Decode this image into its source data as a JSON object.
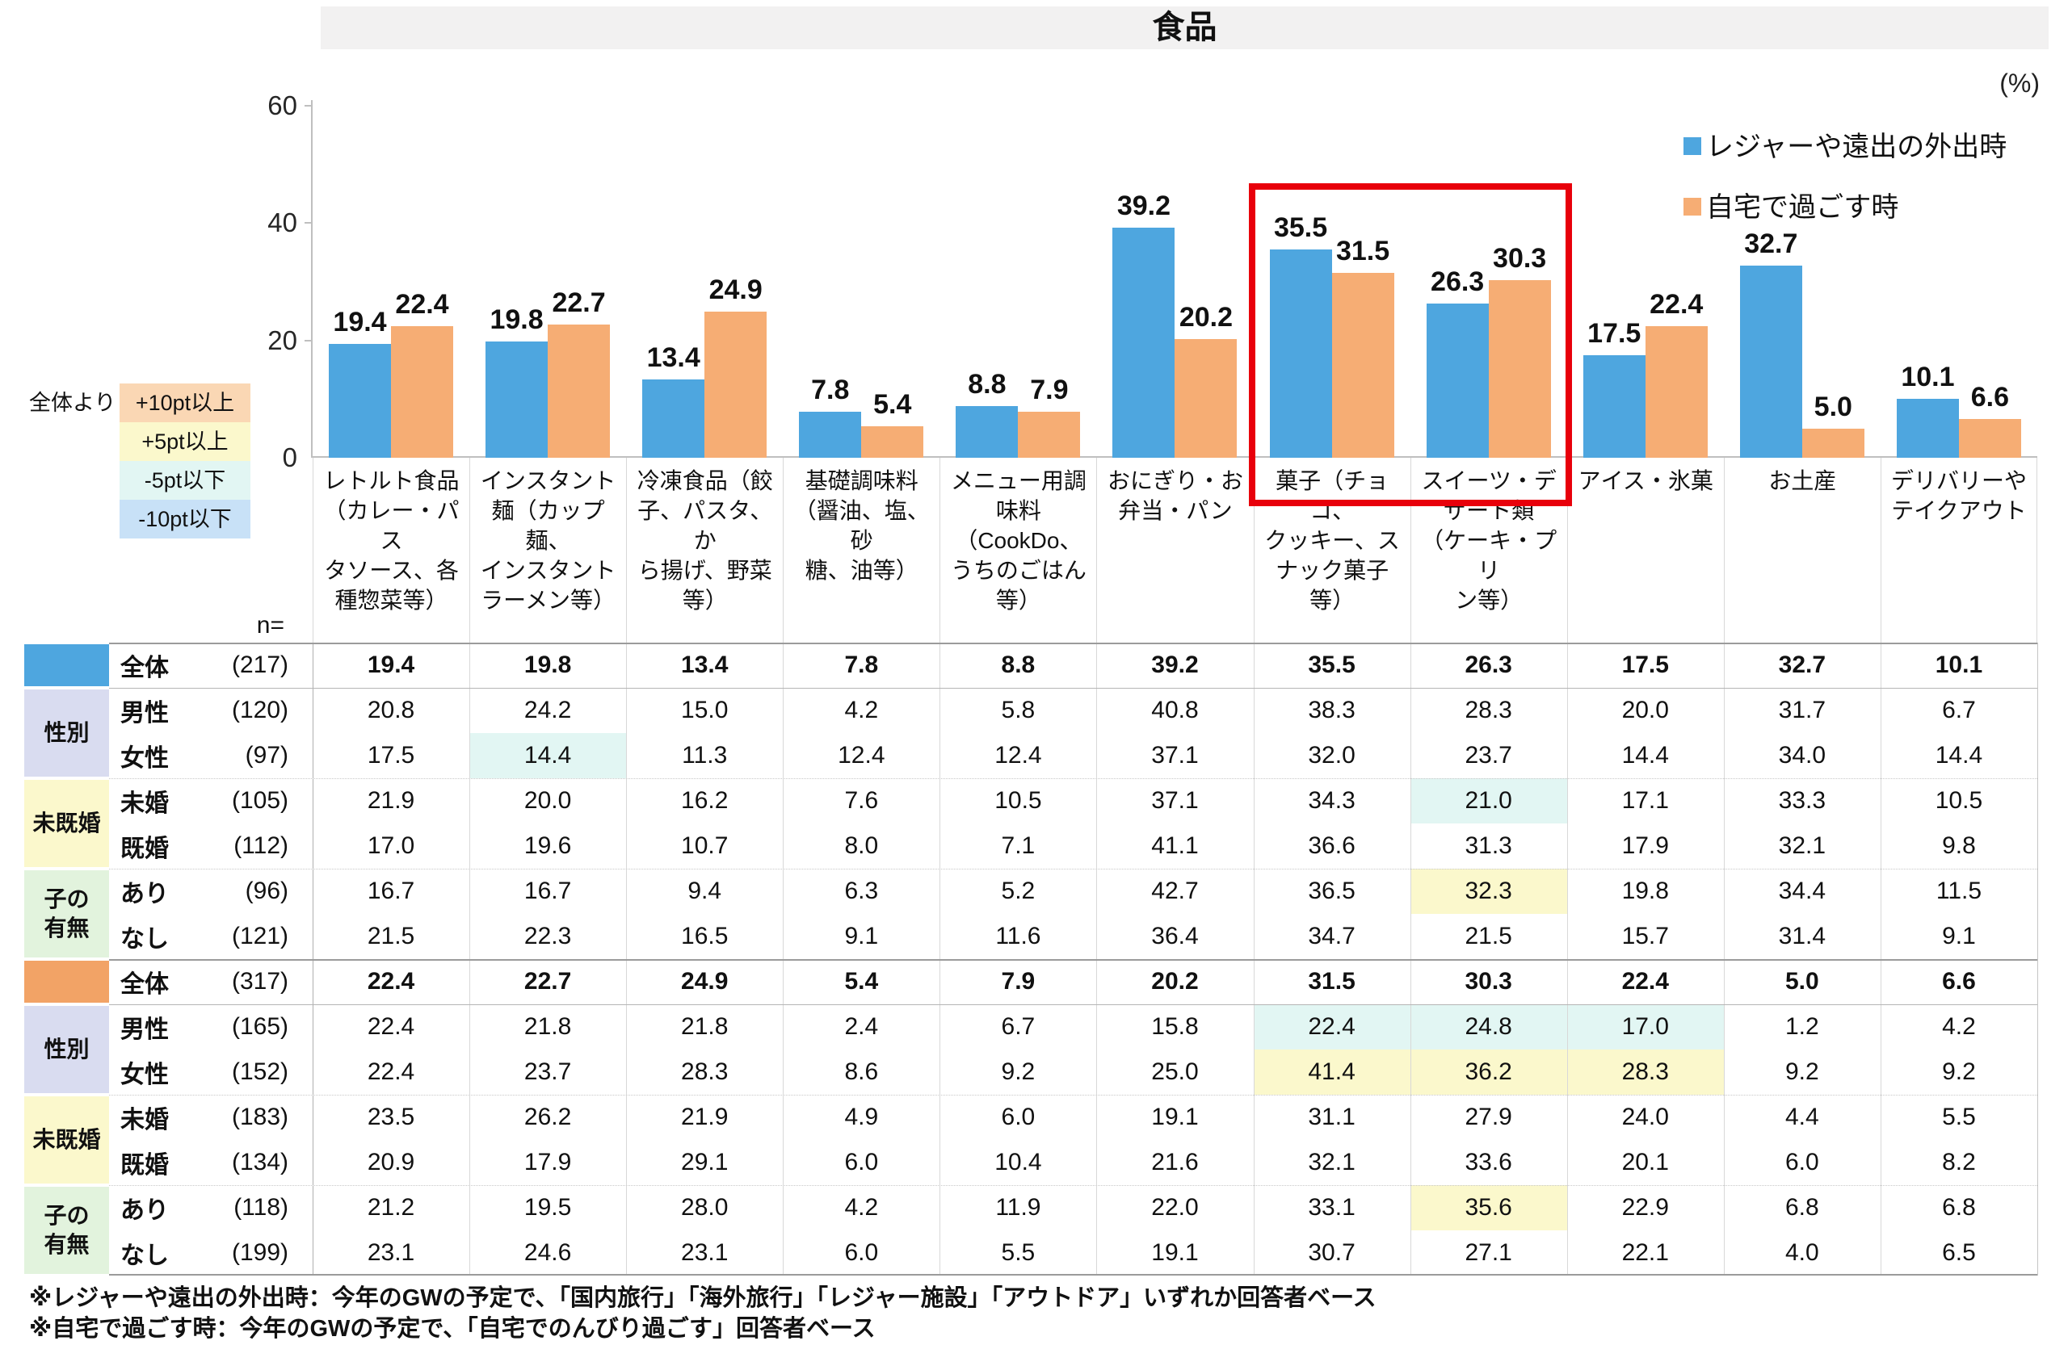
{
  "title": "食品",
  "unit_label": "(%)",
  "legend": [
    {
      "label": "レジャーや遠出の外出時",
      "color": "#4EA6DF"
    },
    {
      "label": "自宅で過ごす時",
      "color": "#F6AD74"
    }
  ],
  "pt_legend": {
    "prefix": "全体より",
    "items": [
      {
        "label": "+10pt以上",
        "color": "#FAD7B4"
      },
      {
        "label": "+5pt以上",
        "color": "#FBF8CC"
      },
      {
        "label": "-5pt以下",
        "color": "#E2F6F3"
      },
      {
        "label": "-10pt以下",
        "color": "#C8E1F7"
      }
    ]
  },
  "highlight_colors": {
    "cyan": "#E2F6F3",
    "yellow": "#FBF8CC"
  },
  "annotation_box_color": "#E8000B",
  "yticks": [
    "60",
    "40",
    "20",
    "0"
  ],
  "chart_data": {
    "type": "bar",
    "title": "食品",
    "unit": "%",
    "ylim": [
      0,
      60
    ],
    "ytick_values": [
      0,
      20,
      40,
      60
    ],
    "grid": false,
    "legend_position": "top-right",
    "categories": [
      "レトルト食品（カレー・パスタソース、各種惣菜等）",
      "インスタント麺（カップ麺、インスタントラーメン等）",
      "冷凍食品（餃子、パスタ、から揚げ、野菜等）",
      "基礎調味料（醤油、塩、砂糖、油等）",
      "メニュー用調味料（CookDo、うちのごはん等）",
      "おにぎり・お弁当・パン",
      "菓子（チョコ、クッキー、スナック菓子等）",
      "スイーツ・デザート類（ケーキ・プリン等）",
      "アイス・氷菓",
      "お土産",
      "デリバリーやテイクアウト"
    ],
    "series": [
      {
        "name": "レジャーや遠出の外出時",
        "color": "#4EA6DF",
        "values": [
          19.4,
          19.8,
          13.4,
          7.8,
          8.8,
          39.2,
          35.5,
          26.3,
          17.5,
          32.7,
          10.1
        ]
      },
      {
        "name": "自宅で過ごす時",
        "color": "#F6AD74",
        "values": [
          22.4,
          22.7,
          24.9,
          5.4,
          7.9,
          20.2,
          31.5,
          30.3,
          22.4,
          5.0,
          6.6
        ]
      }
    ]
  },
  "category_labels_wrapped": [
    "レトルト食品\n（カレー・パス\nタソース、各\n種惣菜等）",
    "インスタント\n麺（カップ麺、\nインスタント\nラーメン等）",
    "冷凍食品（餃\n子、パスタ、か\nら揚げ、野菜\n等）",
    "基礎調味料\n（醤油、塩、砂\n糖、油等）",
    "メニュー用調\n味料\n（CookDo、\nうちのごはん\n等）",
    "おにぎり・お\n弁当・パン",
    "菓子（チョコ、\nクッキー、ス\nナック菓子\n等）",
    "スイーツ・デ\nザート類\n（ケーキ・プリ\nン等）",
    "アイス・氷菓",
    "お土産",
    "デリバリーや\nテイクアウト"
  ],
  "table": {
    "n_header": "n=",
    "group_colors": [
      "#D9DCF0",
      "#FBF8CC",
      "#E2F3DD"
    ],
    "blocks": [
      {
        "swatch_color": "#4EA6DF",
        "groups": [
          {
            "label": "性別"
          },
          {
            "label": "未既婚"
          },
          {
            "label": "子の\n有無"
          }
        ],
        "rows": [
          {
            "label": "全体",
            "n": "(217)",
            "bold": true,
            "values": [
              "19.4",
              "19.8",
              "13.4",
              "7.8",
              "8.8",
              "39.2",
              "35.5",
              "26.3",
              "17.5",
              "32.7",
              "10.1"
            ],
            "hl": {}
          },
          {
            "label": "男性",
            "n": "(120)",
            "values": [
              "20.8",
              "24.2",
              "15.0",
              "4.2",
              "5.8",
              "40.8",
              "38.3",
              "28.3",
              "20.0",
              "31.7",
              "6.7"
            ],
            "hl": {}
          },
          {
            "label": "女性",
            "n": "(97)",
            "values": [
              "17.5",
              "14.4",
              "11.3",
              "12.4",
              "12.4",
              "37.1",
              "32.0",
              "23.7",
              "14.4",
              "34.0",
              "14.4"
            ],
            "hl": {
              "1": "cyan"
            }
          },
          {
            "label": "未婚",
            "n": "(105)",
            "values": [
              "21.9",
              "20.0",
              "16.2",
              "7.6",
              "10.5",
              "37.1",
              "34.3",
              "21.0",
              "17.1",
              "33.3",
              "10.5"
            ],
            "hl": {
              "7": "cyan"
            }
          },
          {
            "label": "既婚",
            "n": "(112)",
            "values": [
              "17.0",
              "19.6",
              "10.7",
              "8.0",
              "7.1",
              "41.1",
              "36.6",
              "31.3",
              "17.9",
              "32.1",
              "9.8"
            ],
            "hl": {}
          },
          {
            "label": "あり",
            "n": "(96)",
            "values": [
              "16.7",
              "16.7",
              "9.4",
              "6.3",
              "5.2",
              "42.7",
              "36.5",
              "32.3",
              "19.8",
              "34.4",
              "11.5"
            ],
            "hl": {
              "7": "yellow"
            }
          },
          {
            "label": "なし",
            "n": "(121)",
            "values": [
              "21.5",
              "22.3",
              "16.5",
              "9.1",
              "11.6",
              "36.4",
              "34.7",
              "21.5",
              "15.7",
              "31.4",
              "9.1"
            ],
            "hl": {}
          }
        ]
      },
      {
        "swatch_color": "#F2A366",
        "groups": [
          {
            "label": "性別"
          },
          {
            "label": "未既婚"
          },
          {
            "label": "子の\n有無"
          }
        ],
        "rows": [
          {
            "label": "全体",
            "n": "(317)",
            "bold": true,
            "values": [
              "22.4",
              "22.7",
              "24.9",
              "5.4",
              "7.9",
              "20.2",
              "31.5",
              "30.3",
              "22.4",
              "5.0",
              "6.6"
            ],
            "hl": {}
          },
          {
            "label": "男性",
            "n": "(165)",
            "values": [
              "22.4",
              "21.8",
              "21.8",
              "2.4",
              "6.7",
              "15.8",
              "22.4",
              "24.8",
              "17.0",
              "1.2",
              "4.2"
            ],
            "hl": {
              "6": "cyan",
              "7": "cyan",
              "8": "cyan"
            }
          },
          {
            "label": "女性",
            "n": "(152)",
            "values": [
              "22.4",
              "23.7",
              "28.3",
              "8.6",
              "9.2",
              "25.0",
              "41.4",
              "36.2",
              "28.3",
              "9.2",
              "9.2"
            ],
            "hl": {
              "6": "yellow",
              "7": "yellow",
              "8": "yellow"
            }
          },
          {
            "label": "未婚",
            "n": "(183)",
            "values": [
              "23.5",
              "26.2",
              "21.9",
              "4.9",
              "6.0",
              "19.1",
              "31.1",
              "27.9",
              "24.0",
              "4.4",
              "5.5"
            ],
            "hl": {}
          },
          {
            "label": "既婚",
            "n": "(134)",
            "values": [
              "20.9",
              "17.9",
              "29.1",
              "6.0",
              "10.4",
              "21.6",
              "32.1",
              "33.6",
              "20.1",
              "6.0",
              "8.2"
            ],
            "hl": {}
          },
          {
            "label": "あり",
            "n": "(118)",
            "values": [
              "21.2",
              "19.5",
              "28.0",
              "4.2",
              "11.9",
              "22.0",
              "33.1",
              "35.6",
              "22.9",
              "6.8",
              "6.8"
            ],
            "hl": {
              "7": "yellow"
            }
          },
          {
            "label": "なし",
            "n": "(199)",
            "values": [
              "23.1",
              "24.6",
              "23.1",
              "6.0",
              "5.5",
              "19.1",
              "30.7",
              "27.1",
              "22.1",
              "4.0",
              "6.5"
            ],
            "hl": {}
          }
        ]
      }
    ]
  },
  "footnotes": [
    "※レジャーや遠出の外出時：今年のGWの予定で、「国内旅行」「海外旅行」「レジャー施設」「アウトドア」いずれか回答者ベース",
    "※自宅で過ごす時：今年のGWの予定で、「自宅でのんびり過ごす」回答者ベース"
  ]
}
